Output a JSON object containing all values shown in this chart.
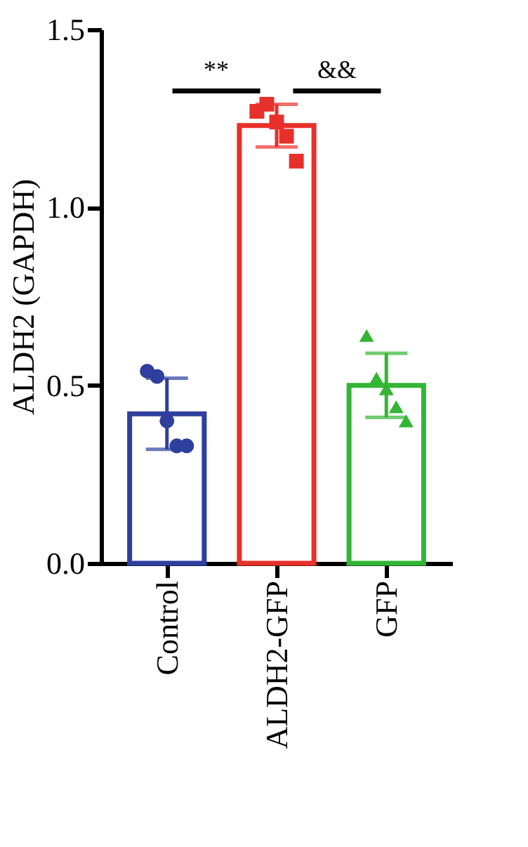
{
  "chart_data": {
    "type": "bar",
    "ylabel": "ALDH2 (GAPDH)",
    "categories": [
      "Control",
      "ALDH2-GFP",
      "GFP"
    ],
    "series": [
      {
        "colors": [
          "#2e3f9e",
          "#e8302a",
          "#33b535"
        ],
        "values": [
          0.42,
          1.23,
          0.5
        ],
        "errors": [
          0.1,
          0.06,
          0.09
        ]
      },
      {
        "type": "scatter",
        "marker": "circle",
        "color": "#2e3f9e",
        "x": [
          "Control",
          "Control",
          "Control",
          "Control",
          "Control"
        ],
        "values": [
          0.54,
          0.525,
          0.4,
          0.33,
          0.33
        ]
      },
      {
        "type": "scatter",
        "marker": "square",
        "color": "#e8302a",
        "x": [
          "ALDH2-GFP",
          "ALDH2-GFP",
          "ALDH2-GFP",
          "ALDH2-GFP",
          "ALDH2-GFP"
        ],
        "values": [
          1.27,
          1.29,
          1.24,
          1.2,
          1.13
        ]
      },
      {
        "type": "scatter",
        "marker": "triangle",
        "color": "#33b535",
        "x": [
          "GFP",
          "GFP",
          "GFP",
          "GFP",
          "GFP"
        ],
        "values": [
          0.64,
          0.52,
          0.49,
          0.44,
          0.4
        ]
      }
    ],
    "annotations": [
      "**",
      "&&"
    ],
    "ylim": [
      0,
      1.5
    ],
    "yticks": [
      {
        "value": 0,
        "label": "0.0"
      },
      0.5,
      {
        "value": 1,
        "label": "1.0"
      },
      1.5
    ],
    "grid": false
  }
}
